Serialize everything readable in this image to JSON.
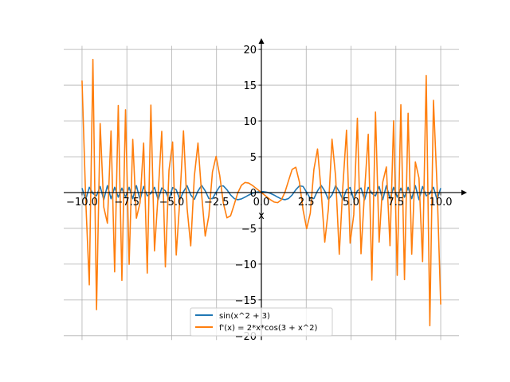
{
  "chart_data": {
    "type": "line",
    "title": "",
    "xlabel": "x",
    "ylabel": "",
    "xlim": [
      -11.02,
      11.02
    ],
    "ylim": [
      -20.6,
      20.5
    ],
    "grid": true,
    "axes_through_origin": true,
    "x_ticks": [
      -10.0,
      -7.5,
      -5.0,
      -2.5,
      0.0,
      2.5,
      5.0,
      7.5,
      10.0
    ],
    "x_tick_labels": [
      "−10.0",
      "−7.5",
      "−5.0",
      "−2.5",
      "0.0",
      "2.5",
      "5.0",
      "7.5",
      "10.0"
    ],
    "y_ticks": [
      -20,
      -15,
      -10,
      -5,
      0,
      5,
      10,
      15,
      20
    ],
    "y_tick_labels": [
      "−20",
      "−15",
      "−10",
      "−5",
      "0",
      "5",
      "10",
      "15",
      "20"
    ],
    "legend_placement": "lower-center",
    "x_range": [
      -10,
      10
    ],
    "samples": 100,
    "series": [
      {
        "name": "sin(x^2 + 3)",
        "expr": "sin(x^2 + 3)",
        "color": "#1f77b4"
      },
      {
        "name": "f'(x) = 2*x*cos(3 + x^2)",
        "expr": "2*x*cos(3 + x^2)",
        "color": "#ff7f0e"
      }
    ]
  }
}
